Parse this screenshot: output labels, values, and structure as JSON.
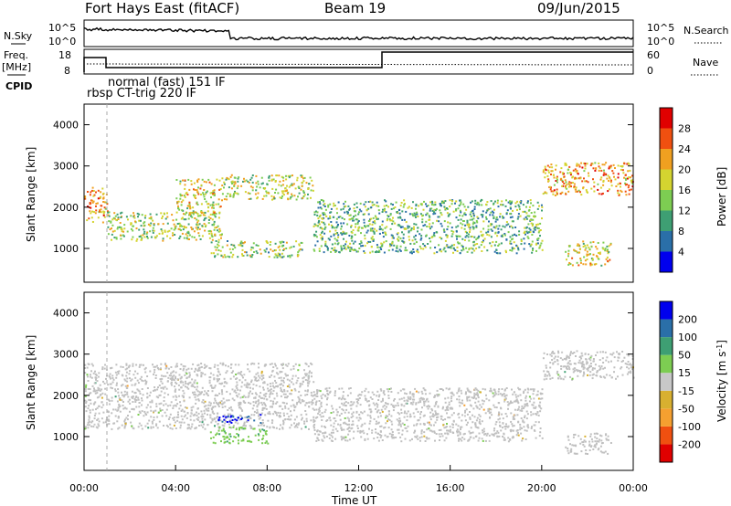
{
  "header": {
    "radar": "Fort Hays East (fitACF)",
    "beam": "Beam 19",
    "date": "09/Jun/2015"
  },
  "strips": {
    "nsky_label": "N.Sky",
    "nsky_ticks": [
      "10^5",
      "10^0"
    ],
    "nsearch_label": "N.Search",
    "nsearch_ticks": [
      "10^5",
      "10^0"
    ],
    "freq_label_1": "Freq.",
    "freq_label_2": "[MHz]",
    "freq_ticks": [
      "18",
      "8"
    ],
    "nave_label": "Nave",
    "nave_ticks": [
      "60",
      "0"
    ],
    "cpid_label": "CPID",
    "cpid_entries": [
      "normal (fast) 151 IF",
      "rbsp CT-trig 220 IF"
    ]
  },
  "colors": {
    "power": [
      "#0000ee",
      "#2a6fa8",
      "#3e9f73",
      "#7dcd52",
      "#d4d430",
      "#f0a020",
      "#f05010",
      "#e00000"
    ],
    "velocity": [
      "#e00000",
      "#f05010",
      "#f5a030",
      "#d8b030",
      "#c8c8c8",
      "#7dcd52",
      "#3e9f73",
      "#2a6fa8",
      "#0000ee"
    ],
    "ground_scatter": "#c0c0c0"
  },
  "chart_data": [
    {
      "type": "heatmap",
      "panel": "power",
      "ylabel": "Slant Range [km]",
      "yticks": [
        "4000",
        "3000",
        "2000",
        "1000"
      ],
      "ylim": [
        180,
        4500
      ],
      "xlim": [
        0,
        24
      ],
      "colorbar_label": "Power [dB]",
      "colorbar_ticks": [
        "28",
        "24",
        "20",
        "16",
        "12",
        "8",
        "4"
      ],
      "colorbar_range": [
        0,
        32
      ],
      "features": [
        {
          "t": [
            0.0,
            1.0
          ],
          "r": [
            1650,
            2500
          ],
          "level": 22
        },
        {
          "t": [
            1.0,
            6.0
          ],
          "r": [
            1200,
            1900
          ],
          "level": 16
        },
        {
          "t": [
            4.0,
            6.0
          ],
          "r": [
            1800,
            2700
          ],
          "level": 18
        },
        {
          "t": [
            6.0,
            10.0
          ],
          "r": [
            2200,
            2800
          ],
          "level": 17
        },
        {
          "t": [
            5.5,
            9.5
          ],
          "r": [
            800,
            1200
          ],
          "level": 14
        },
        {
          "t": [
            10.0,
            20.0
          ],
          "r": [
            900,
            2200
          ],
          "level": 12
        },
        {
          "t": [
            21.0,
            23.0
          ],
          "r": [
            600,
            1200
          ],
          "level": 18
        },
        {
          "t": [
            20.0,
            24.0
          ],
          "r": [
            2300,
            3100
          ],
          "level": 22
        }
      ]
    },
    {
      "type": "heatmap",
      "panel": "velocity",
      "ylabel": "Slant Range [km]",
      "yticks": [
        "4000",
        "3000",
        "2000",
        "1000"
      ],
      "ylim": [
        180,
        4500
      ],
      "xlim": [
        0,
        24
      ],
      "xticks": [
        "00:00",
        "04:00",
        "08:00",
        "12:00",
        "16:00",
        "20:00",
        "00:00"
      ],
      "xlabel": "Time UT",
      "colorbar_label": "Velocity [m s^-1]",
      "colorbar_ticks": [
        "200",
        "100",
        "50",
        "15",
        "-15",
        "-50",
        "-100",
        "-200"
      ],
      "colorbar_range": [
        -250,
        250
      ],
      "features": [
        {
          "t": [
            0.0,
            10.0
          ],
          "r": [
            1200,
            2800
          ],
          "level": 0
        },
        {
          "t": [
            5.8,
            7.8
          ],
          "r": [
            1350,
            1550
          ],
          "level": 210
        },
        {
          "t": [
            5.5,
            8.0
          ],
          "r": [
            850,
            1250
          ],
          "level": 60
        },
        {
          "t": [
            10.0,
            20.0
          ],
          "r": [
            900,
            2200
          ],
          "level": 0
        },
        {
          "t": [
            20.0,
            24.0
          ],
          "r": [
            2400,
            3100
          ],
          "level": 0
        },
        {
          "t": [
            21.0,
            23.0
          ],
          "r": [
            600,
            1100
          ],
          "level": 0
        }
      ]
    }
  ]
}
